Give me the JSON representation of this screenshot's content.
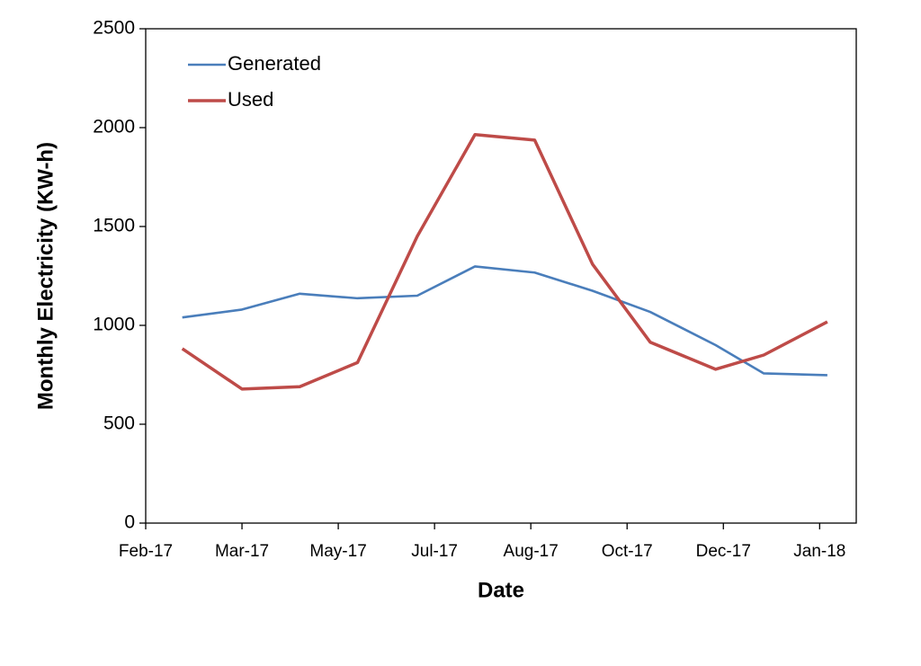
{
  "chart_data": {
    "type": "line",
    "x_label": "Date",
    "y_label": "Monthly Electricity (KW-h)",
    "x": [
      42793,
      42824,
      42854,
      42884,
      42915,
      42945,
      42976,
      43006,
      43036,
      43070,
      43095,
      43128
    ],
    "series": [
      {
        "name": "Generated",
        "color": "#4a7ebb",
        "values": [
          1040,
          1080,
          1160,
          1137,
          1150,
          1298,
          1267,
          1175,
          1068,
          900,
          757,
          748
        ]
      },
      {
        "name": "Used",
        "color": "#be4b48",
        "values": [
          882,
          678,
          690,
          812,
          1450,
          1965,
          1937,
          1310,
          915,
          778,
          850,
          1018
        ]
      }
    ],
    "xlim": [
      42774,
      43143
    ],
    "xticks": [
      {
        "value": 42774,
        "label": "Feb-17"
      },
      {
        "value": 42824,
        "label": "Mar-17"
      },
      {
        "value": 42874,
        "label": "May-17"
      },
      {
        "value": 42924,
        "label": "Jul-17"
      },
      {
        "value": 42974,
        "label": "Aug-17"
      },
      {
        "value": 43024,
        "label": "Oct-17"
      },
      {
        "value": 43074,
        "label": "Dec-17"
      },
      {
        "value": 43124,
        "label": "Jan-18"
      }
    ],
    "ylim": [
      0,
      2500
    ],
    "yticks": [
      0,
      500,
      1000,
      1500,
      2000,
      2500
    ],
    "legend": "top-left"
  }
}
